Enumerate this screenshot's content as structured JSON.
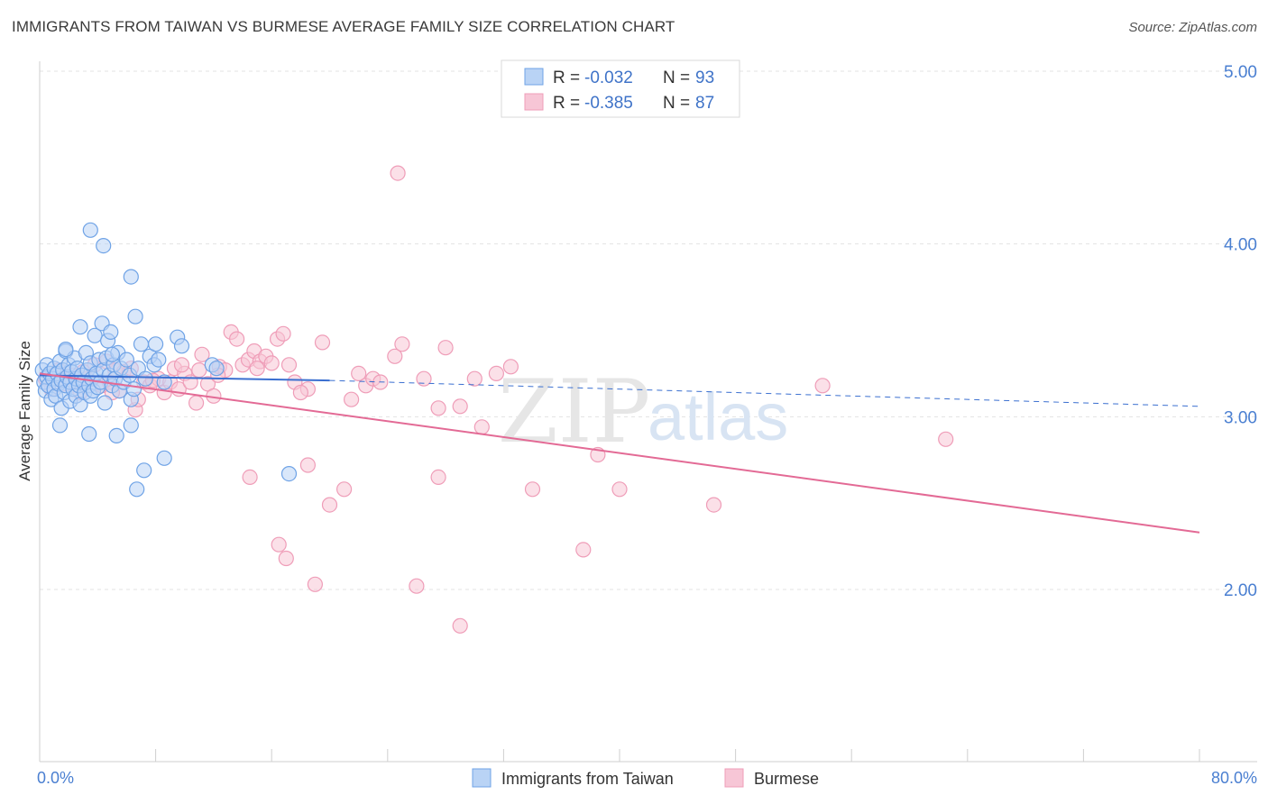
{
  "title": "IMMIGRANTS FROM TAIWAN VS BURMESE AVERAGE FAMILY SIZE CORRELATION CHART",
  "source": "Source: ZipAtlas.com",
  "watermark": {
    "part1": "ZIP",
    "part2": "atlas"
  },
  "legend_top": {
    "r_label": "R =",
    "n_label": "N =",
    "rows": [
      {
        "series": "Immigrants from Taiwan",
        "r": "-0.032",
        "n": "93"
      },
      {
        "series": "Burmese",
        "r": "-0.385",
        "n": "87"
      }
    ]
  },
  "chart_data": {
    "type": "scatter",
    "title": "IMMIGRANTS FROM TAIWAN VS BURMESE AVERAGE FAMILY SIZE CORRELATION CHART",
    "xlabel": "",
    "ylabel": "Average Family Size",
    "xlim": [
      0,
      80
    ],
    "ylim": [
      1.0,
      5.1
    ],
    "x_tick_labels": [
      "0.0%",
      "80.0%"
    ],
    "y_ticks": [
      2.0,
      3.0,
      4.0,
      5.0
    ],
    "y_tick_labels": [
      "2.00",
      "3.00",
      "4.00",
      "5.00"
    ],
    "grid": true,
    "legend_position": "bottom",
    "series": [
      {
        "name": "Immigrants from Taiwan",
        "color": "#6fa3e6",
        "fill": "#b9d3f5",
        "line_color": "#3a6fd0",
        "trend": {
          "x0": 0,
          "y0": 3.24,
          "x1": 20,
          "y1": 3.21,
          "dash_to_x": 80,
          "dash_to_y": 3.06
        },
        "points": [
          [
            0.2,
            3.27
          ],
          [
            0.3,
            3.2
          ],
          [
            0.4,
            3.15
          ],
          [
            0.5,
            3.3
          ],
          [
            0.5,
            3.23
          ],
          [
            0.6,
            3.18
          ],
          [
            0.7,
            3.25
          ],
          [
            0.8,
            3.1
          ],
          [
            0.9,
            3.22
          ],
          [
            1.0,
            3.28
          ],
          [
            1.0,
            3.16
          ],
          [
            1.1,
            3.12
          ],
          [
            1.2,
            3.25
          ],
          [
            1.3,
            3.19
          ],
          [
            1.4,
            3.32
          ],
          [
            1.5,
            3.05
          ],
          [
            1.5,
            3.21
          ],
          [
            1.6,
            3.27
          ],
          [
            1.7,
            3.14
          ],
          [
            1.8,
            3.38
          ],
          [
            1.8,
            3.18
          ],
          [
            1.9,
            3.23
          ],
          [
            2.0,
            3.3
          ],
          [
            2.1,
            3.09
          ],
          [
            2.1,
            3.2
          ],
          [
            2.2,
            3.26
          ],
          [
            2.3,
            3.16
          ],
          [
            2.4,
            3.34
          ],
          [
            2.5,
            3.22
          ],
          [
            2.5,
            3.12
          ],
          [
            2.6,
            3.28
          ],
          [
            2.7,
            3.18
          ],
          [
            2.8,
            3.52
          ],
          [
            2.8,
            3.07
          ],
          [
            2.9,
            3.24
          ],
          [
            3.0,
            3.2
          ],
          [
            3.1,
            3.14
          ],
          [
            3.2,
            3.37
          ],
          [
            3.3,
            3.27
          ],
          [
            3.4,
            3.18
          ],
          [
            3.5,
            3.31
          ],
          [
            3.5,
            3.12
          ],
          [
            3.6,
            3.22
          ],
          [
            3.7,
            3.15
          ],
          [
            3.8,
            3.47
          ],
          [
            3.9,
            3.25
          ],
          [
            4.0,
            3.17
          ],
          [
            4.1,
            3.33
          ],
          [
            4.2,
            3.2
          ],
          [
            4.3,
            3.54
          ],
          [
            4.4,
            3.27
          ],
          [
            4.5,
            3.08
          ],
          [
            4.6,
            3.34
          ],
          [
            4.7,
            3.44
          ],
          [
            4.8,
            3.24
          ],
          [
            4.9,
            3.49
          ],
          [
            5.0,
            3.18
          ],
          [
            5.1,
            3.3
          ],
          [
            5.2,
            3.22
          ],
          [
            5.4,
            3.37
          ],
          [
            5.5,
            3.15
          ],
          [
            5.6,
            3.28
          ],
          [
            5.8,
            3.2
          ],
          [
            6.0,
            3.33
          ],
          [
            6.2,
            3.24
          ],
          [
            6.3,
            3.1
          ],
          [
            6.5,
            3.16
          ],
          [
            6.6,
            3.58
          ],
          [
            6.8,
            3.28
          ],
          [
            7.0,
            3.42
          ],
          [
            7.3,
            3.22
          ],
          [
            7.6,
            3.35
          ],
          [
            7.9,
            3.3
          ],
          [
            8.2,
            3.33
          ],
          [
            8.6,
            3.2
          ],
          [
            9.5,
            3.46
          ],
          [
            9.8,
            3.41
          ],
          [
            11.9,
            3.3
          ],
          [
            12.2,
            3.28
          ],
          [
            3.5,
            4.08
          ],
          [
            4.4,
            3.99
          ],
          [
            6.3,
            3.81
          ],
          [
            1.4,
            2.95
          ],
          [
            3.4,
            2.9
          ],
          [
            5.3,
            2.89
          ],
          [
            6.3,
            2.95
          ],
          [
            7.2,
            2.69
          ],
          [
            6.7,
            2.58
          ],
          [
            8.6,
            2.76
          ],
          [
            17.2,
            2.67
          ],
          [
            1.8,
            3.39
          ],
          [
            5.0,
            3.36
          ],
          [
            8.0,
            3.42
          ]
        ]
      },
      {
        "name": "Burmese",
        "color": "#ef9db8",
        "fill": "#f7c6d6",
        "line_color": "#e36a95",
        "trend": {
          "x0": 0,
          "y0": 3.25,
          "x1": 80,
          "y1": 2.33
        },
        "points": [
          [
            0.4,
            3.22
          ],
          [
            0.8,
            3.16
          ],
          [
            1.3,
            3.27
          ],
          [
            1.8,
            3.19
          ],
          [
            2.3,
            3.24
          ],
          [
            2.8,
            3.14
          ],
          [
            3.3,
            3.22
          ],
          [
            3.8,
            3.3
          ],
          [
            4.3,
            3.18
          ],
          [
            4.6,
            3.32
          ],
          [
            4.8,
            3.2
          ],
          [
            5.2,
            3.27
          ],
          [
            5.5,
            3.15
          ],
          [
            5.8,
            3.26
          ],
          [
            6.3,
            3.28
          ],
          [
            6.6,
            3.04
          ],
          [
            6.8,
            3.1
          ],
          [
            7.2,
            3.2
          ],
          [
            7.6,
            3.18
          ],
          [
            8.2,
            3.22
          ],
          [
            8.6,
            3.14
          ],
          [
            9.0,
            3.2
          ],
          [
            9.3,
            3.28
          ],
          [
            9.6,
            3.16
          ],
          [
            10.0,
            3.25
          ],
          [
            10.4,
            3.2
          ],
          [
            10.8,
            3.08
          ],
          [
            11.2,
            3.36
          ],
          [
            11.6,
            3.19
          ],
          [
            12.0,
            3.12
          ],
          [
            12.4,
            3.29
          ],
          [
            12.8,
            3.27
          ],
          [
            13.2,
            3.49
          ],
          [
            13.6,
            3.45
          ],
          [
            14.0,
            3.3
          ],
          [
            14.4,
            3.33
          ],
          [
            14.8,
            3.38
          ],
          [
            15.2,
            3.32
          ],
          [
            15.6,
            3.35
          ],
          [
            16.0,
            3.31
          ],
          [
            16.4,
            3.45
          ],
          [
            16.8,
            3.48
          ],
          [
            17.2,
            3.3
          ],
          [
            17.6,
            3.2
          ],
          [
            18.5,
            3.16
          ],
          [
            19.5,
            3.43
          ],
          [
            22.0,
            3.25
          ],
          [
            22.5,
            3.18
          ],
          [
            23.0,
            3.22
          ],
          [
            24.5,
            3.35
          ],
          [
            25.0,
            3.42
          ],
          [
            26.5,
            3.22
          ],
          [
            27.5,
            3.05
          ],
          [
            28.0,
            3.4
          ],
          [
            29.0,
            3.06
          ],
          [
            30.5,
            2.94
          ],
          [
            31.5,
            3.25
          ],
          [
            32.5,
            3.29
          ],
          [
            34.0,
            2.58
          ],
          [
            24.7,
            4.41
          ],
          [
            16.5,
            2.26
          ],
          [
            17.0,
            2.18
          ],
          [
            18.5,
            2.72
          ],
          [
            21.0,
            2.58
          ],
          [
            20.0,
            2.49
          ],
          [
            14.5,
            2.65
          ],
          [
            19.0,
            2.03
          ],
          [
            26.0,
            2.02
          ],
          [
            29.0,
            1.79
          ],
          [
            27.5,
            2.65
          ],
          [
            37.5,
            2.23
          ],
          [
            38.5,
            2.78
          ],
          [
            40.0,
            2.58
          ],
          [
            46.5,
            2.49
          ],
          [
            54.0,
            3.18
          ],
          [
            62.5,
            2.87
          ],
          [
            18.0,
            3.14
          ],
          [
            23.5,
            3.2
          ],
          [
            30.0,
            3.22
          ],
          [
            9.8,
            3.3
          ],
          [
            12.3,
            3.24
          ],
          [
            15.0,
            3.28
          ],
          [
            21.5,
            3.1
          ],
          [
            7.8,
            3.21
          ],
          [
            3.0,
            3.26
          ],
          [
            5.0,
            3.14
          ],
          [
            11.0,
            3.27
          ]
        ]
      }
    ]
  },
  "bottom_legend": [
    {
      "label": "Immigrants from Taiwan",
      "fill": "#b9d3f5",
      "stroke": "#6fa3e6"
    },
    {
      "label": "Burmese",
      "fill": "#f7c6d6",
      "stroke": "#ef9db8"
    }
  ]
}
